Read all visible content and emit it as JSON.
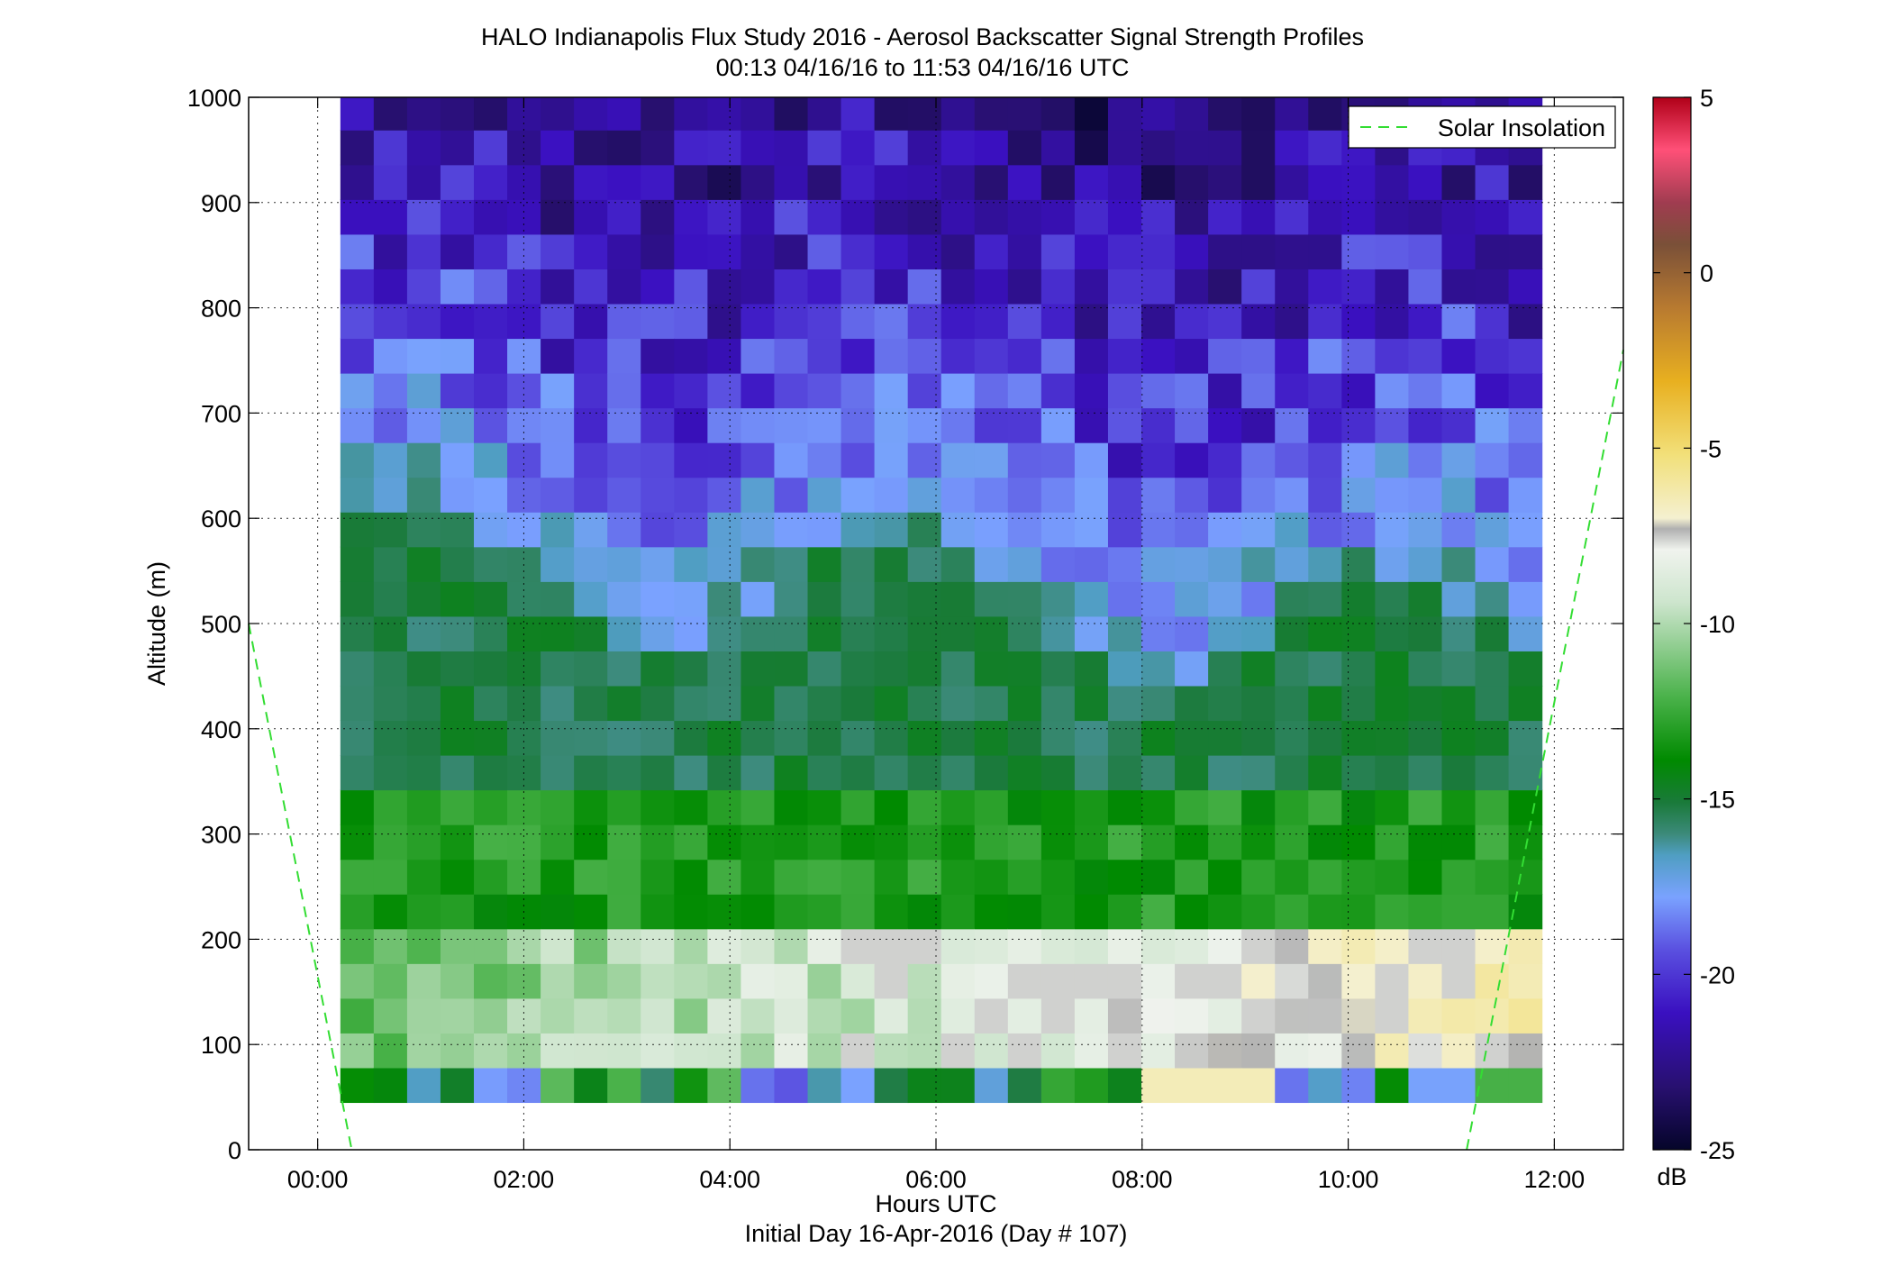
{
  "chart_data": {
    "type": "heatmap",
    "title": "HALO Indianapolis Flux Study 2016 - Aerosol Backscatter Signal Strength Profiles",
    "subtitle": "00:13 04/16/16 to 11:53 04/16/16  UTC",
    "xlabel": "Hours UTC",
    "xlabel2": "Initial Day 16-Apr-2016 (Day # 107)",
    "ylabel": "Altitude (m)",
    "xlim": [
      -0.67,
      12.67
    ],
    "ylim": [
      0,
      1000
    ],
    "x_ticks": [
      0,
      2,
      4,
      6,
      8,
      10,
      12
    ],
    "x_tick_labels": [
      "00:00",
      "02:00",
      "04:00",
      "06:00",
      "08:00",
      "10:00",
      "12:00"
    ],
    "y_ticks": [
      0,
      100,
      200,
      300,
      400,
      500,
      600,
      700,
      800,
      900,
      1000
    ],
    "y_tick_labels": [
      "0",
      "100",
      "200",
      "300",
      "400",
      "500",
      "600",
      "700",
      "800",
      "900",
      "1000"
    ],
    "grid": true,
    "colorbar": {
      "label": "dB",
      "range": [
        -25,
        5
      ],
      "ticks": [
        5,
        0,
        -5,
        -10,
        -15,
        -20,
        -25
      ],
      "tick_labels": [
        "5",
        "0",
        "-5",
        "-10",
        "-15",
        "-20",
        "-25"
      ]
    },
    "heatmap": {
      "time_start_hours": 0.22,
      "time_end_hours": 11.88,
      "altitude_bottom_m": 45,
      "altitude_top_m": 1000,
      "profile_count": 36,
      "bin_height_m": 33,
      "shape": "altitude-profile values, generated cell by cell"
    },
    "legend": {
      "position": "top-right",
      "entries": [
        {
          "name": "Solar Insolation",
          "color": "#33dd33",
          "style": "dashed"
        }
      ]
    },
    "solar_insolation": {
      "x": [
        -0.67,
        0.33,
        11.15,
        12.67
      ],
      "y": [
        500,
        0,
        0,
        760
      ]
    }
  }
}
